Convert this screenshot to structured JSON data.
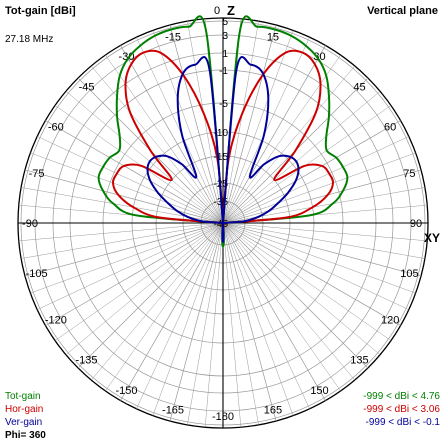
{
  "header": {
    "title": "Tot-gain [dBi]",
    "plane": "Vertical plane",
    "frequency": "27.18 MHz",
    "top_axis": "Z",
    "right_axis": "XY"
  },
  "footer": {
    "legend": [
      {
        "name": "Tot-gain",
        "color": "#008000"
      },
      {
        "name": "Hor-gain",
        "color": "#cc0000"
      },
      {
        "name": "Ver-gain",
        "color": "#000099"
      }
    ],
    "ranges": [
      {
        "text": "-999 < dBi < 4.76",
        "color": "#008000"
      },
      {
        "text": "-999 < dBi < 3.06",
        "color": "#cc0000"
      },
      {
        "text": "-999 < dBi < -0.1",
        "color": "#000099"
      }
    ],
    "phi": "Phi= 360"
  },
  "chart_data": {
    "type": "polar",
    "grid": true,
    "angle_ticks": [
      "0",
      "15",
      "30",
      "45",
      "60",
      "75",
      "90",
      "105",
      "120",
      "135",
      "150",
      "165",
      "-180",
      "-165",
      "-150",
      "-135",
      "-120",
      "-105",
      "-90",
      "-75",
      "-60",
      "-45",
      "-30",
      "-15"
    ],
    "radial_ticks": [
      "5",
      "3",
      "1",
      "-1",
      "-5",
      "-10",
      "-15",
      "-25",
      "-35",
      "-45"
    ],
    "radial_values": [
      5,
      3,
      1,
      -1,
      -5,
      -10,
      -15,
      -25,
      -35,
      -45
    ],
    "series": [
      {
        "name": "Tot-gain",
        "color": "#008000",
        "elevation": [
          0,
          5,
          10,
          15,
          20,
          25,
          30,
          35,
          40,
          45,
          50,
          55,
          60,
          65,
          70,
          75,
          80,
          85,
          90
        ],
        "gain_dbi": [
          -999,
          -11,
          -6.5,
          -4.5,
          -3.5,
          -3.5,
          -3.7,
          -4.2,
          -3.2,
          -1.4,
          0.4,
          2.1,
          3.3,
          4.1,
          4.6,
          4.76,
          4.6,
          3.5,
          -999
        ]
      },
      {
        "name": "Hor-gain",
        "color": "#cc0000",
        "elevation": [
          0,
          5,
          10,
          15,
          20,
          25,
          30,
          35,
          40,
          45,
          50,
          55,
          60,
          65,
          70,
          75,
          80,
          85,
          90
        ],
        "gain_dbi": [
          -999,
          -16,
          -10,
          -7,
          -5.5,
          -5.5,
          -6,
          -8.5,
          -15,
          -8,
          -2,
          1,
          2.5,
          3,
          2.2,
          -1,
          -6.5,
          -16,
          -999
        ]
      },
      {
        "name": "Ver-gain",
        "color": "#000099",
        "elevation": [
          0,
          5,
          10,
          15,
          20,
          25,
          30,
          35,
          40,
          45,
          50,
          55,
          60,
          65,
          70,
          75,
          80,
          85,
          90
        ],
        "gain_dbi": [
          -999,
          -35,
          -27,
          -22,
          -18,
          -14,
          -11.5,
          -9.8,
          -9.2,
          -9.5,
          -10.8,
          -14,
          -20,
          -9,
          -3.5,
          -0.8,
          -0.1,
          -1,
          -999
        ]
      }
    ]
  }
}
